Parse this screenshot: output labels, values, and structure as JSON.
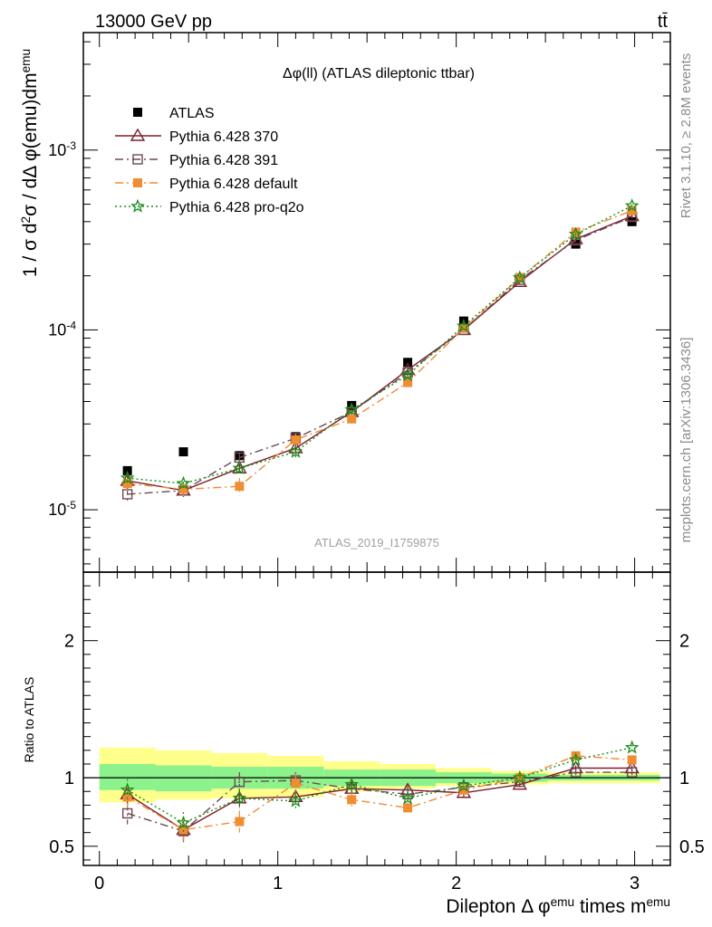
{
  "header": {
    "energy_label": "13000 GeV pp",
    "process_label": "tt̄"
  },
  "side_labels": {
    "rivet": "Rivet 3.1.10, ≥ 2.8M events",
    "mcplots": "mcplots.cern.ch [arXiv:1306.3436]"
  },
  "watermark": "ATLAS_2019_I1759875",
  "chart_data": [
    {
      "type": "scatter",
      "panel": "main",
      "title": "Δφ(ll) (ATLAS dileptonic ttbar)",
      "ylabel": "1 / σ  d²σ / dΔ φ(emu)dm^emu",
      "yscale": "log",
      "ylim": [
        4.5e-06,
        0.0045
      ],
      "xlim": [
        -0.09,
        3.2
      ],
      "y_ticks": [
        "10^-5",
        "10^-4",
        "10^-3"
      ],
      "x": [
        0.157,
        0.471,
        0.785,
        1.1,
        1.414,
        1.728,
        2.042,
        2.356,
        2.67,
        2.985
      ],
      "series": [
        {
          "name": "ATLAS",
          "color": "#000000",
          "marker": "square-filled",
          "line": "none",
          "values": [
            1.65e-05,
            2.1e-05,
            2e-05,
            2.55e-05,
            3.8e-05,
            6.6e-05,
            0.000112,
            0.000195,
            0.0003,
            0.0004
          ]
        },
        {
          "name": "Pythia 6.428 370",
          "color": "#7b1f2a",
          "marker": "triangle-open",
          "line": "solid",
          "values": [
            1.45e-05,
            1.28e-05,
            1.7e-05,
            2.2e-05,
            3.5e-05,
            6e-05,
            0.0001,
            0.000185,
            0.00032,
            0.00043
          ],
          "errors": [
            9e-07,
            1e-06,
            9e-07,
            1.1e-06,
            1.4e-06,
            2e-06,
            3e-06,
            4e-06,
            6e-06,
            8e-06
          ]
        },
        {
          "name": "Pythia 6.428 391",
          "color": "#6b4a52",
          "marker": "square-open",
          "line": "dashdot",
          "values": [
            1.22e-05,
            1.28e-05,
            1.95e-05,
            2.5e-05,
            3.5e-05,
            5.8e-05,
            0.0001,
            0.00019,
            0.000315,
            0.000425
          ],
          "errors": [
            1.2e-06,
            1e-06,
            1.2e-06,
            1.3e-06,
            1.5e-06,
            2e-06,
            3e-06,
            4e-06,
            6e-06,
            8e-06
          ]
        },
        {
          "name": "Pythia 6.428 default",
          "color": "#f08c32",
          "marker": "square-filled",
          "line": "dashdot",
          "values": [
            1.4e-05,
            1.3e-05,
            1.35e-05,
            2.45e-05,
            3.2e-05,
            5.1e-05,
            0.000102,
            0.000195,
            0.00035,
            0.00046
          ],
          "errors": [
            1.2e-06,
            1.2e-06,
            1.5e-06,
            2e-06,
            2e-06,
            2.5e-06,
            3e-06,
            4e-06,
            6e-06,
            8e-06
          ]
        },
        {
          "name": "Pythia 6.428 pro-q2o",
          "color": "#1a8c1a",
          "marker": "star-open",
          "line": "dotted",
          "values": [
            1.5e-05,
            1.4e-05,
            1.7e-05,
            2.1e-05,
            3.6e-05,
            5.6e-05,
            0.000105,
            0.000195,
            0.00034,
            0.00049
          ],
          "errors": [
            1.2e-06,
            1.2e-06,
            1.3e-06,
            1.5e-06,
            1.8e-06,
            2.2e-06,
            3e-06,
            4e-06,
            6e-06,
            8e-06
          ]
        }
      ],
      "legend_position": "top-left"
    },
    {
      "type": "scatter",
      "panel": "ratio",
      "ylabel": "Ratio to ATLAS",
      "xlabel": "Dilepton Δ φ^emu times m^emu",
      "ylim": [
        0.36,
        2.5
      ],
      "xlim": [
        -0.09,
        3.2
      ],
      "y_ticks": [
        "0.5",
        "1",
        "2"
      ],
      "x_ticks": [
        "0",
        "1",
        "2",
        "3"
      ],
      "bin_edges": [
        0,
        0.314,
        0.628,
        0.942,
        1.257,
        1.571,
        1.885,
        2.199,
        2.513,
        2.827,
        3.142
      ],
      "band_inner": [
        [
          0.91,
          1.1
        ],
        [
          0.9,
          1.09
        ],
        [
          0.92,
          1.08
        ],
        [
          0.92,
          1.08
        ],
        [
          0.94,
          1.06
        ],
        [
          0.94,
          1.06
        ],
        [
          0.96,
          1.04
        ],
        [
          0.97,
          1.03
        ],
        [
          0.98,
          1.02
        ],
        [
          0.98,
          1.02
        ]
      ],
      "band_outer": [
        [
          0.82,
          1.22
        ],
        [
          0.84,
          1.2
        ],
        [
          0.85,
          1.18
        ],
        [
          0.86,
          1.16
        ],
        [
          0.9,
          1.12
        ],
        [
          0.92,
          1.1
        ],
        [
          0.94,
          1.07
        ],
        [
          0.95,
          1.05
        ],
        [
          0.96,
          1.04
        ],
        [
          0.96,
          1.04
        ]
      ],
      "x": [
        0.157,
        0.471,
        0.785,
        1.1,
        1.414,
        1.728,
        2.042,
        2.356,
        2.67,
        2.985
      ],
      "series": [
        {
          "name": "Pythia 6.428 370",
          "color": "#7b1f2a",
          "marker": "triangle-open",
          "line": "solid",
          "values": [
            0.88,
            0.62,
            0.85,
            0.86,
            0.92,
            0.91,
            0.89,
            0.95,
            1.07,
            1.07
          ],
          "errors": [
            0.07,
            0.08,
            0.06,
            0.05,
            0.04,
            0.03,
            0.03,
            0.02,
            0.02,
            0.02
          ]
        },
        {
          "name": "Pythia 6.428 391",
          "color": "#6b4a52",
          "marker": "square-open",
          "line": "dashdot",
          "values": [
            0.74,
            0.61,
            0.97,
            0.98,
            0.92,
            0.88,
            0.93,
            0.97,
            1.04,
            1.04
          ],
          "errors": [
            0.08,
            0.08,
            0.07,
            0.06,
            0.04,
            0.03,
            0.03,
            0.02,
            0.02,
            0.02
          ]
        },
        {
          "name": "Pythia 6.428 default",
          "color": "#f08c32",
          "marker": "square-filled",
          "line": "dashdot",
          "values": [
            0.86,
            0.62,
            0.68,
            0.96,
            0.84,
            0.78,
            0.91,
            1.0,
            1.16,
            1.13
          ],
          "errors": [
            0.08,
            0.08,
            0.08,
            0.07,
            0.05,
            0.04,
            0.03,
            0.02,
            0.02,
            0.02
          ]
        },
        {
          "name": "Pythia 6.428 pro-q2o",
          "color": "#1a8c1a",
          "marker": "star-open",
          "line": "dotted",
          "values": [
            0.91,
            0.67,
            0.85,
            0.83,
            0.95,
            0.85,
            0.94,
            1.0,
            1.13,
            1.22
          ],
          "errors": [
            0.08,
            0.08,
            0.07,
            0.06,
            0.04,
            0.03,
            0.03,
            0.02,
            0.02,
            0.02
          ]
        }
      ]
    }
  ]
}
